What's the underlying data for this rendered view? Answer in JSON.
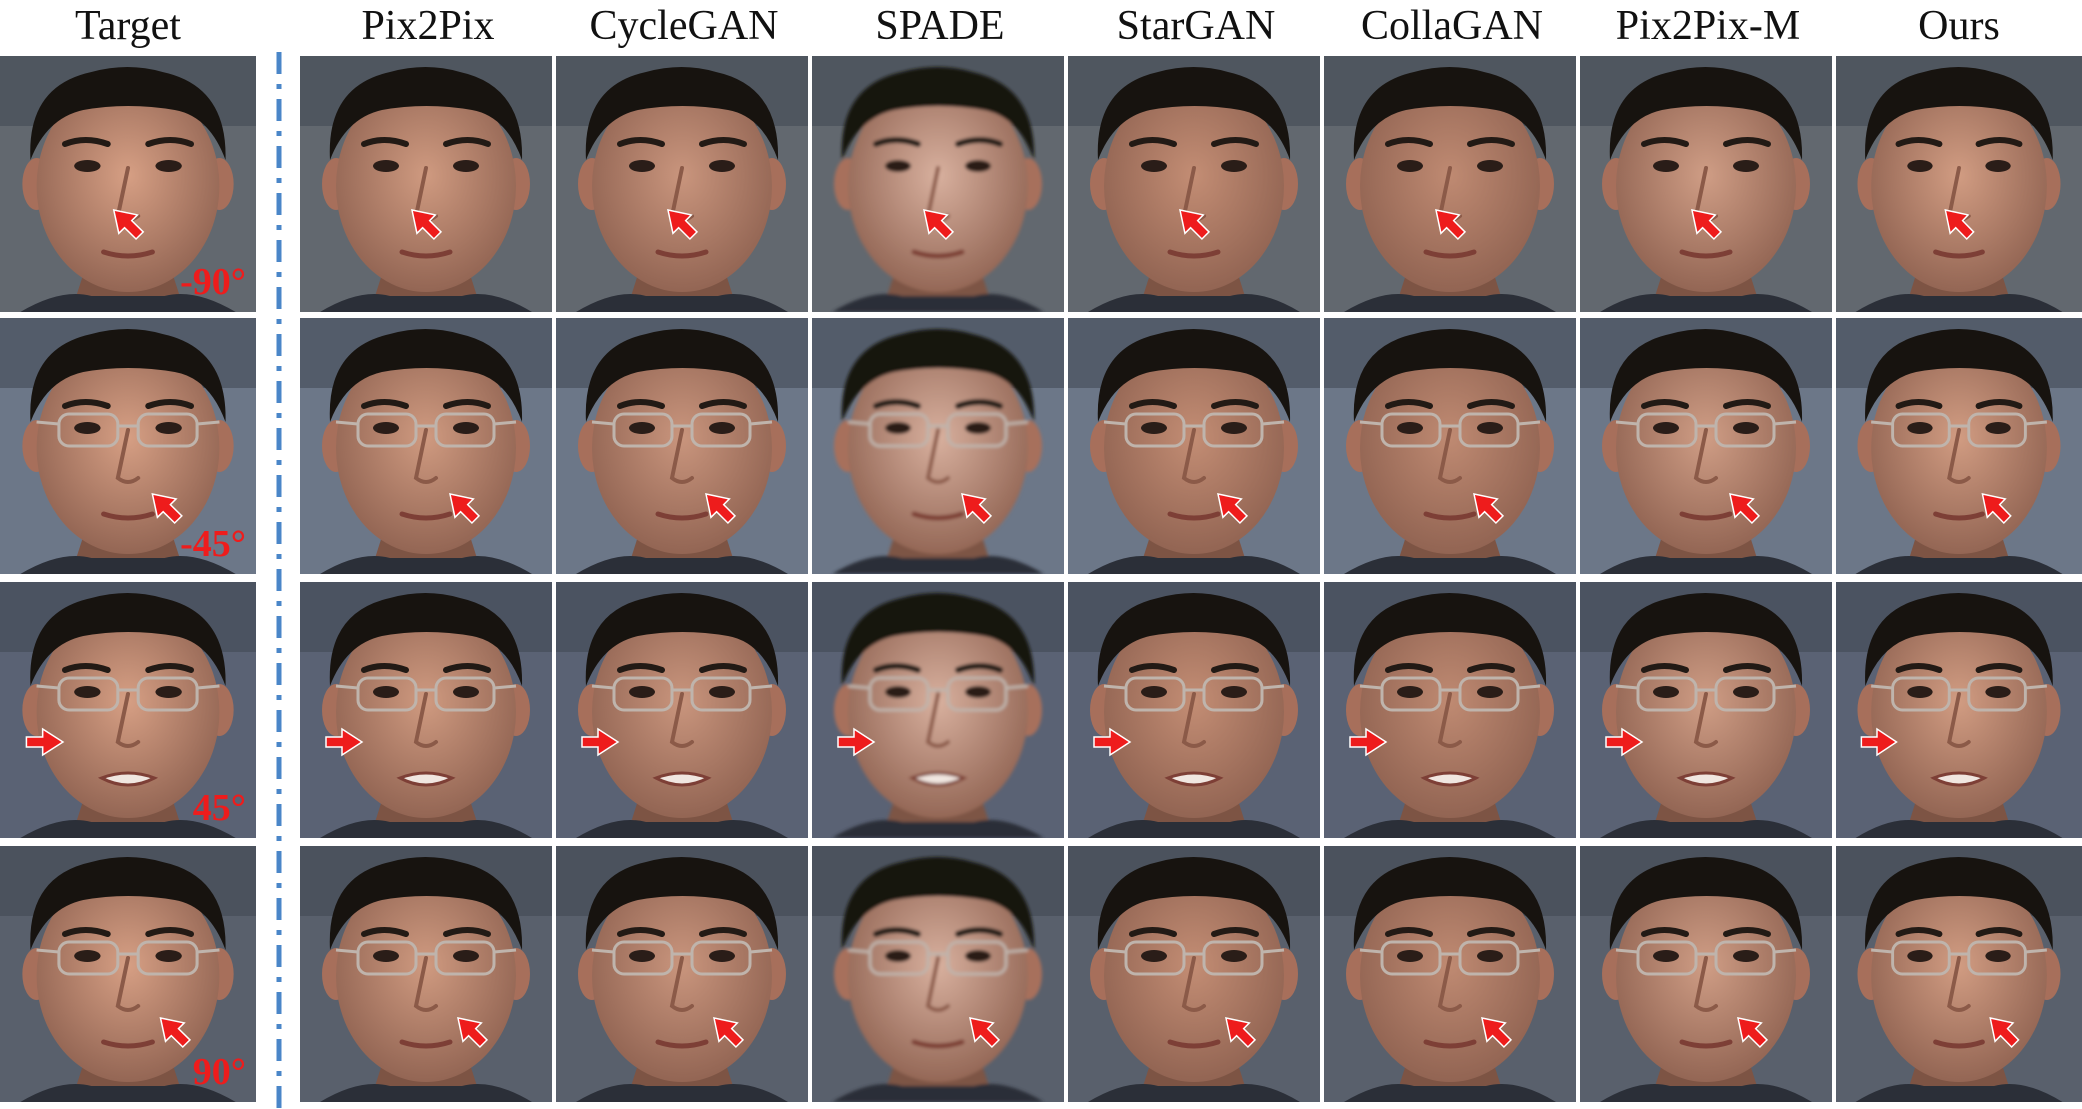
{
  "column_headers": [
    "Target",
    "Pix2Pix",
    "CycleGAN",
    "SPADE",
    "StarGAN",
    "CollaGAN",
    "Pix2Pix-M",
    "Ours"
  ],
  "rows": [
    {
      "angle_label": "-90°",
      "subject": "young man, no glasses",
      "arrow_region": "nose bridge",
      "arrow_direction": "up-left"
    },
    {
      "angle_label": "-45°",
      "subject": "man with glasses",
      "arrow_region": "left cheek",
      "arrow_direction": "up-left"
    },
    {
      "angle_label": "45°",
      "subject": "man with glasses",
      "arrow_region": "right cheek",
      "arrow_direction": "right"
    },
    {
      "angle_label": "90°",
      "subject": "man with glasses",
      "arrow_region": "left cheek",
      "arrow_direction": "up-left"
    }
  ],
  "colors": {
    "arrow": "#ee1c1c",
    "angle_label": "#ee1c1c",
    "separator": "#4a86c8",
    "background": "#ffffff"
  }
}
